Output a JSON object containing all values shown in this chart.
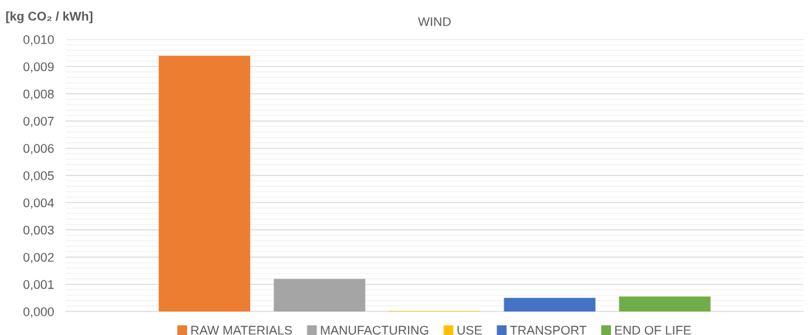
{
  "chart_data": {
    "type": "bar",
    "title": "WIND",
    "ylabel": "[kg CO₂ / kWh]",
    "categories": [
      null
    ],
    "series": [
      {
        "name": "RAW MATERIALS",
        "color": "#ed7d31",
        "values": [
          0.0094
        ]
      },
      {
        "name": "MANUFACTURING",
        "color": "#a5a5a5",
        "values": [
          0.0012
        ]
      },
      {
        "name": "USE",
        "color": "#ffc000",
        "values": [
          2e-05
        ]
      },
      {
        "name": "TRANSPORT",
        "color": "#4472c4",
        "values": [
          0.0005
        ]
      },
      {
        "name": "END OF LIFE",
        "color": "#70ad47",
        "values": [
          0.00055
        ]
      }
    ],
    "ylim": [
      0,
      0.01
    ],
    "yticks": [
      {
        "value": 0,
        "label": "0,000"
      },
      {
        "value": 0.001,
        "label": "0,001"
      },
      {
        "value": 0.002,
        "label": "0,002"
      },
      {
        "value": 0.003,
        "label": "0,003"
      },
      {
        "value": 0.004,
        "label": "0,004"
      },
      {
        "value": 0.005,
        "label": "0,005"
      },
      {
        "value": 0.006,
        "label": "0,006"
      },
      {
        "value": 0.007,
        "label": "0,007"
      },
      {
        "value": 0.008,
        "label": "0,008"
      },
      {
        "value": 0.009,
        "label": "0,009"
      },
      {
        "value": 0.01,
        "label": "0,010"
      }
    ],
    "grid": "y",
    "legend": "bottom"
  }
}
